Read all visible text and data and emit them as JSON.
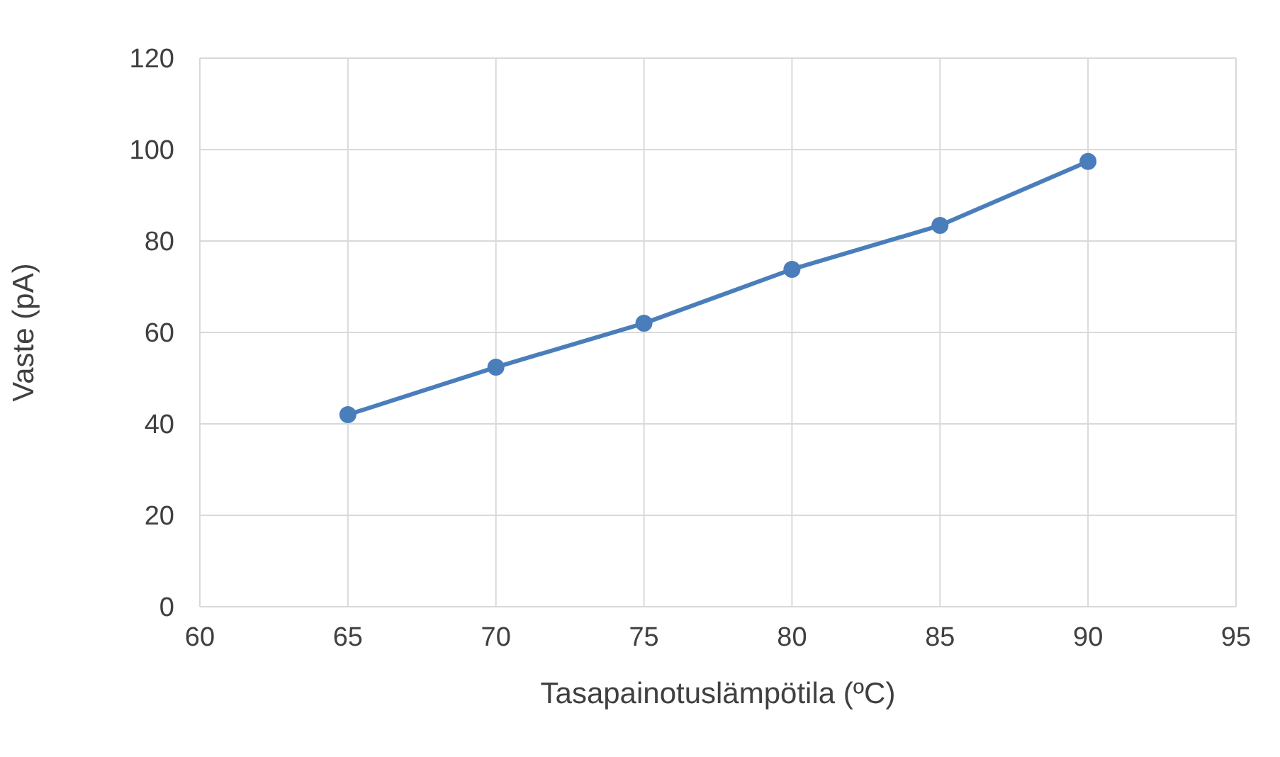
{
  "chart_data": {
    "type": "line",
    "xlabel": "Tasapainotuslämpötila (ºC)",
    "ylabel": "Vaste (pA)",
    "x": [
      65,
      70,
      75,
      80,
      85,
      90
    ],
    "series": [
      {
        "color": "#4a7ebb",
        "values": [
          42,
          52.4,
          62,
          73.8,
          83.4,
          97.4
        ]
      }
    ],
    "xlim": [
      60,
      95
    ],
    "xticks": [
      60,
      65,
      70,
      75,
      80,
      85,
      90,
      95
    ],
    "ylim": [
      0,
      120
    ],
    "yticks": [
      0,
      20,
      40,
      60,
      80,
      100,
      120
    ],
    "grid": true,
    "marker": "circle",
    "line_style": "solid"
  }
}
